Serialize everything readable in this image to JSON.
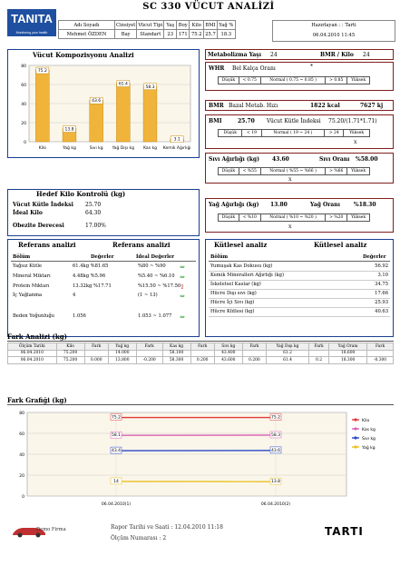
{
  "header": {
    "logo": "TANITA",
    "logo_tagline": "Monitoring your health",
    "title": "SC 330  VÜCUT ANALİZİ",
    "columns": [
      "Adı Soyadı",
      "Cinsiyet",
      "Vücut Tipi",
      "Yaş",
      "Boy",
      "Kilo",
      "BMI",
      "Yağ %"
    ],
    "values": [
      "Mehmet ÖZDEN",
      "Bay",
      "Standart",
      "23",
      "171",
      "75.2",
      "25.7",
      "18.3"
    ],
    "prepared_by": "Hazırlayan : : Tarti",
    "datetime": "06.04.2010   11:45"
  },
  "body_comp": {
    "title": "Vücut Kompozisyonu Analizi",
    "chart_data": {
      "type": "bar",
      "categories": [
        "Kilo",
        "Yağ kg",
        "Sıvı kg",
        "Yağ Dışı kg",
        "Kas kg",
        "Kemik Ağırlığı"
      ],
      "values": [
        75.2,
        13.8,
        43.6,
        61.4,
        58.3,
        3.1
      ],
      "ylim": [
        0,
        80
      ],
      "yticks": [
        0,
        20,
        40,
        60,
        80
      ],
      "grid": true,
      "colors": {
        "bar": "#f0b43a"
      }
    }
  },
  "metabolism": {
    "age_label": "Metabolizma Yaşı",
    "age_value": "24",
    "bmr_kilo_label": "BMR / Kilo",
    "bmr_kilo_value": "24"
  },
  "whr": {
    "label": "WHR",
    "sub": "Bel Kalça Oranı",
    "value": "*",
    "ranges": [
      "Düşük",
      "< 0.75",
      "Normal ( 0.75 ~ 0.85 )",
      "> 0.85",
      "Yüksek"
    ]
  },
  "bmr": {
    "label": "BMR",
    "sub": "Bazal Metab. Hızı",
    "kcal": "1822 kcal",
    "kj": "7627 kj"
  },
  "bmi": {
    "label": "BMI",
    "value": "25.70",
    "sub": "Vücut Kütle İndeksi",
    "formula": "75.20/(1.71*1.71)",
    "ranges": [
      "Düşük",
      "< 19",
      "Normal ( 19 ~ 24 )",
      "> 24",
      "Yüksek"
    ],
    "mark": "X"
  },
  "water": {
    "label": "Sıvı Ağırlığı (kg)",
    "value": "43.60",
    "ratio_label": "Sıvı Oranı",
    "ratio_value": "%58.00",
    "ranges": [
      "Düşük",
      "< %55",
      "Normal ( %55 ~ %66 )",
      "> %66",
      "Yüksek"
    ],
    "mark": "X"
  },
  "target": {
    "title": "Hedef Kilo Kontrolü (kg)",
    "rows": [
      {
        "label": "Vücut Kütle İndeksi",
        "value": "25.70"
      },
      {
        "label": "İdeal Kilo",
        "value": "64.30"
      },
      {
        "label": "Obezite Derecesi",
        "value": "17.00%"
      }
    ]
  },
  "fat": {
    "label": "Yağ Ağırlığı (kg)",
    "value": "13.80",
    "ratio_label": "Yağ Oranı",
    "ratio_value": "%18.30",
    "ranges": [
      "Düşük",
      "< %10",
      "Normal ( %10 ~ %20 )",
      "> %20",
      "Yüksek"
    ],
    "mark": "X"
  },
  "ref": {
    "title1": "Referans analizi",
    "title2": "Referans analizi",
    "col_section": "Bölüm",
    "col_values": "Değerler",
    "col_ideal": "İdeal Değerler",
    "rows": [
      {
        "name": "Yağsız Kütle",
        "value": "61.4kg  %81.65",
        "ideal": "%80 ~ %90",
        "arrow": "⇔"
      },
      {
        "name": "Mineral Miktarı",
        "value": "4.48kg  %5.96",
        "ideal": "%5.40 ~ %6.10",
        "arrow": "⇔"
      },
      {
        "name": "Protein Miktarı",
        "value": "13.32kg  %17.71",
        "ideal": "%15.50 ~ %17.50",
        "arrow": "⇧"
      },
      {
        "name": "İç Yağlanma",
        "value": "4",
        "ideal": "(1 ~ 13)",
        "arrow": "⇔"
      },
      {
        "name": "Beden Yoğunluğu",
        "value": "1.056",
        "ideal": "1.053 ~ 1.077",
        "arrow": "⇔"
      }
    ]
  },
  "mass": {
    "title1": "Kütlesel analiz",
    "title2": "Kütlesel analiz",
    "col_section": "Bölüm",
    "col_values": "Değerler",
    "rows": [
      {
        "name": "Yumuşak Kas Dokusu (kg)",
        "value": "56.92"
      },
      {
        "name": "Kemik Mineralleri Ağırlığı (kg)",
        "value": "3.10"
      },
      {
        "name": "İskeletsel Kaslar (kg)",
        "value": "34.75"
      },
      {
        "name": "Hücre Dışı sıvı (kg)",
        "value": "17.66"
      },
      {
        "name": "Hücre İçi Sıvı (kg)",
        "value": "25.93"
      },
      {
        "name": "Hücre Kütlesi (kg)",
        "value": "40.63"
      }
    ]
  },
  "diff": {
    "title": "Fark Analizi (kg)",
    "columns": [
      "Ölçüm Tarihi",
      "Kilo",
      "Fark",
      "Yağ kg",
      "Fark",
      "Kas kg",
      "Fark",
      "Sıvı kg",
      "Fark",
      "Yağ Dışı kg",
      "Fark",
      "Yağ Oranı",
      "Fark"
    ],
    "rows": [
      [
        "06.04.2010",
        "75.200",
        "",
        "14.000",
        "",
        "58.100",
        "",
        "43.400",
        "",
        "61.2",
        "",
        "18.600",
        ""
      ],
      [
        "06.04.2010",
        "75.200",
        "0.000",
        "13.800",
        "-0.200",
        "58.300",
        "0.200",
        "43.600",
        "0.200",
        "61.4",
        "0.2",
        "18.300",
        "-0.300"
      ]
    ]
  },
  "diff_chart": {
    "title": "Fark Grafiği (kg)",
    "chart_data": {
      "type": "line",
      "x": [
        "06.04.2010(1)",
        "06.04.2010(2)"
      ],
      "ylim": [
        0,
        80
      ],
      "yticks": [
        0,
        20,
        40,
        60,
        80
      ],
      "series": [
        {
          "name": "Kilo",
          "values": [
            75.2,
            75.2
          ],
          "color": "#e23a3a"
        },
        {
          "name": "Kas kg",
          "values": [
            58.1,
            58.3
          ],
          "color": "#d95fb0"
        },
        {
          "name": "Sıvı kg",
          "values": [
            43.4,
            43.6
          ],
          "color": "#2848c8"
        },
        {
          "name": "Yağ kg",
          "values": [
            14,
            13.8
          ],
          "color": "#e8c020"
        }
      ],
      "legend": "right"
    }
  },
  "footer": {
    "brand": "Demo Firma",
    "report_label": "Rapor Tarihi ve Saati :  12.04.2010   11:18",
    "measure_label": "Ölçüm Numarası : 2",
    "right_logo": "TARTI"
  }
}
